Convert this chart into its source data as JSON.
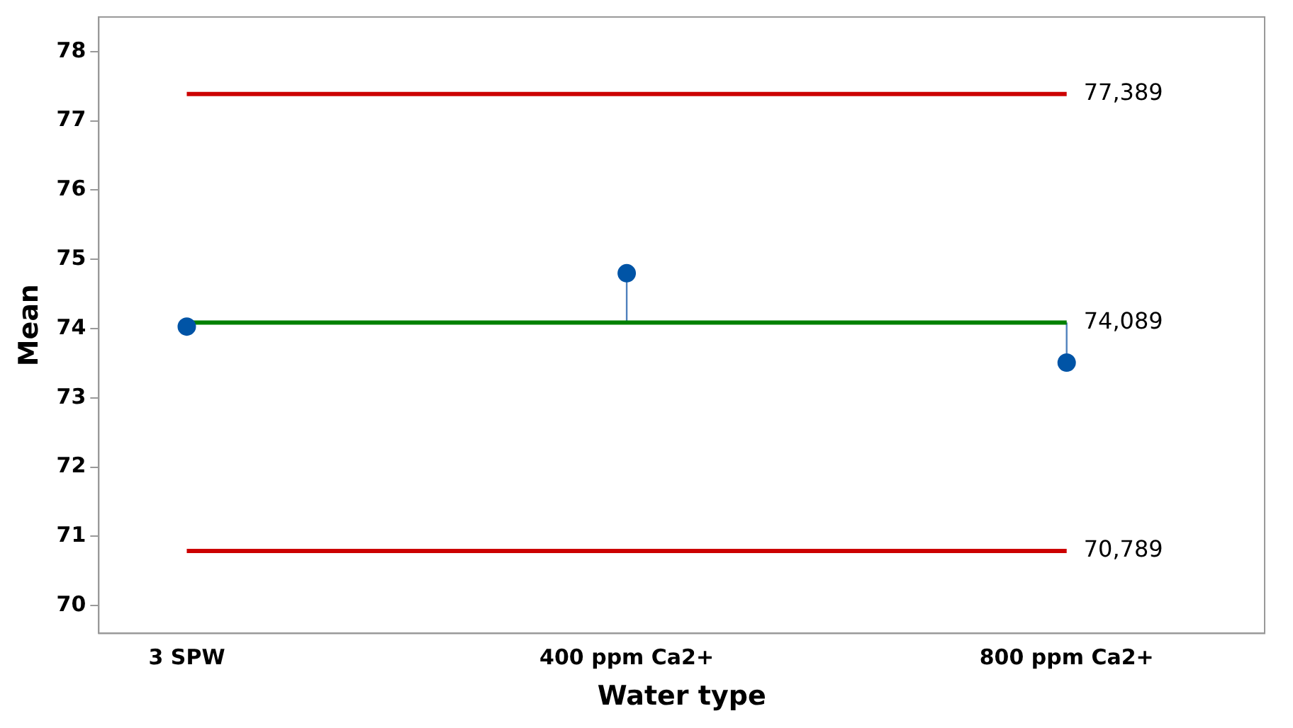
{
  "chart_data": {
    "type": "scatter",
    "xlabel": "Water type",
    "ylabel": "Mean",
    "categories": [
      "3 SPW",
      "400 ppm Ca2+",
      "800 ppm Ca2+"
    ],
    "values": [
      74.03,
      74.8,
      73.51
    ],
    "errors": [
      null,
      [
        74.089,
        74.8
      ],
      [
        73.51,
        74.089
      ]
    ],
    "color": "#0054a6",
    "marker": "circle",
    "ylim": [
      69.6,
      78.5
    ],
    "yticks": [
      70,
      71,
      72,
      73,
      74,
      75,
      76,
      77,
      78
    ],
    "ref_lines": [
      {
        "axis": "y",
        "value": 77.389,
        "label": "77,389",
        "color": "#cc0000"
      },
      {
        "axis": "y",
        "value": 74.089,
        "label": "74,089",
        "color": "#008000"
      },
      {
        "axis": "y",
        "value": 70.789,
        "label": "70,789",
        "color": "#cc0000"
      }
    ],
    "grid": false,
    "legend": false
  }
}
